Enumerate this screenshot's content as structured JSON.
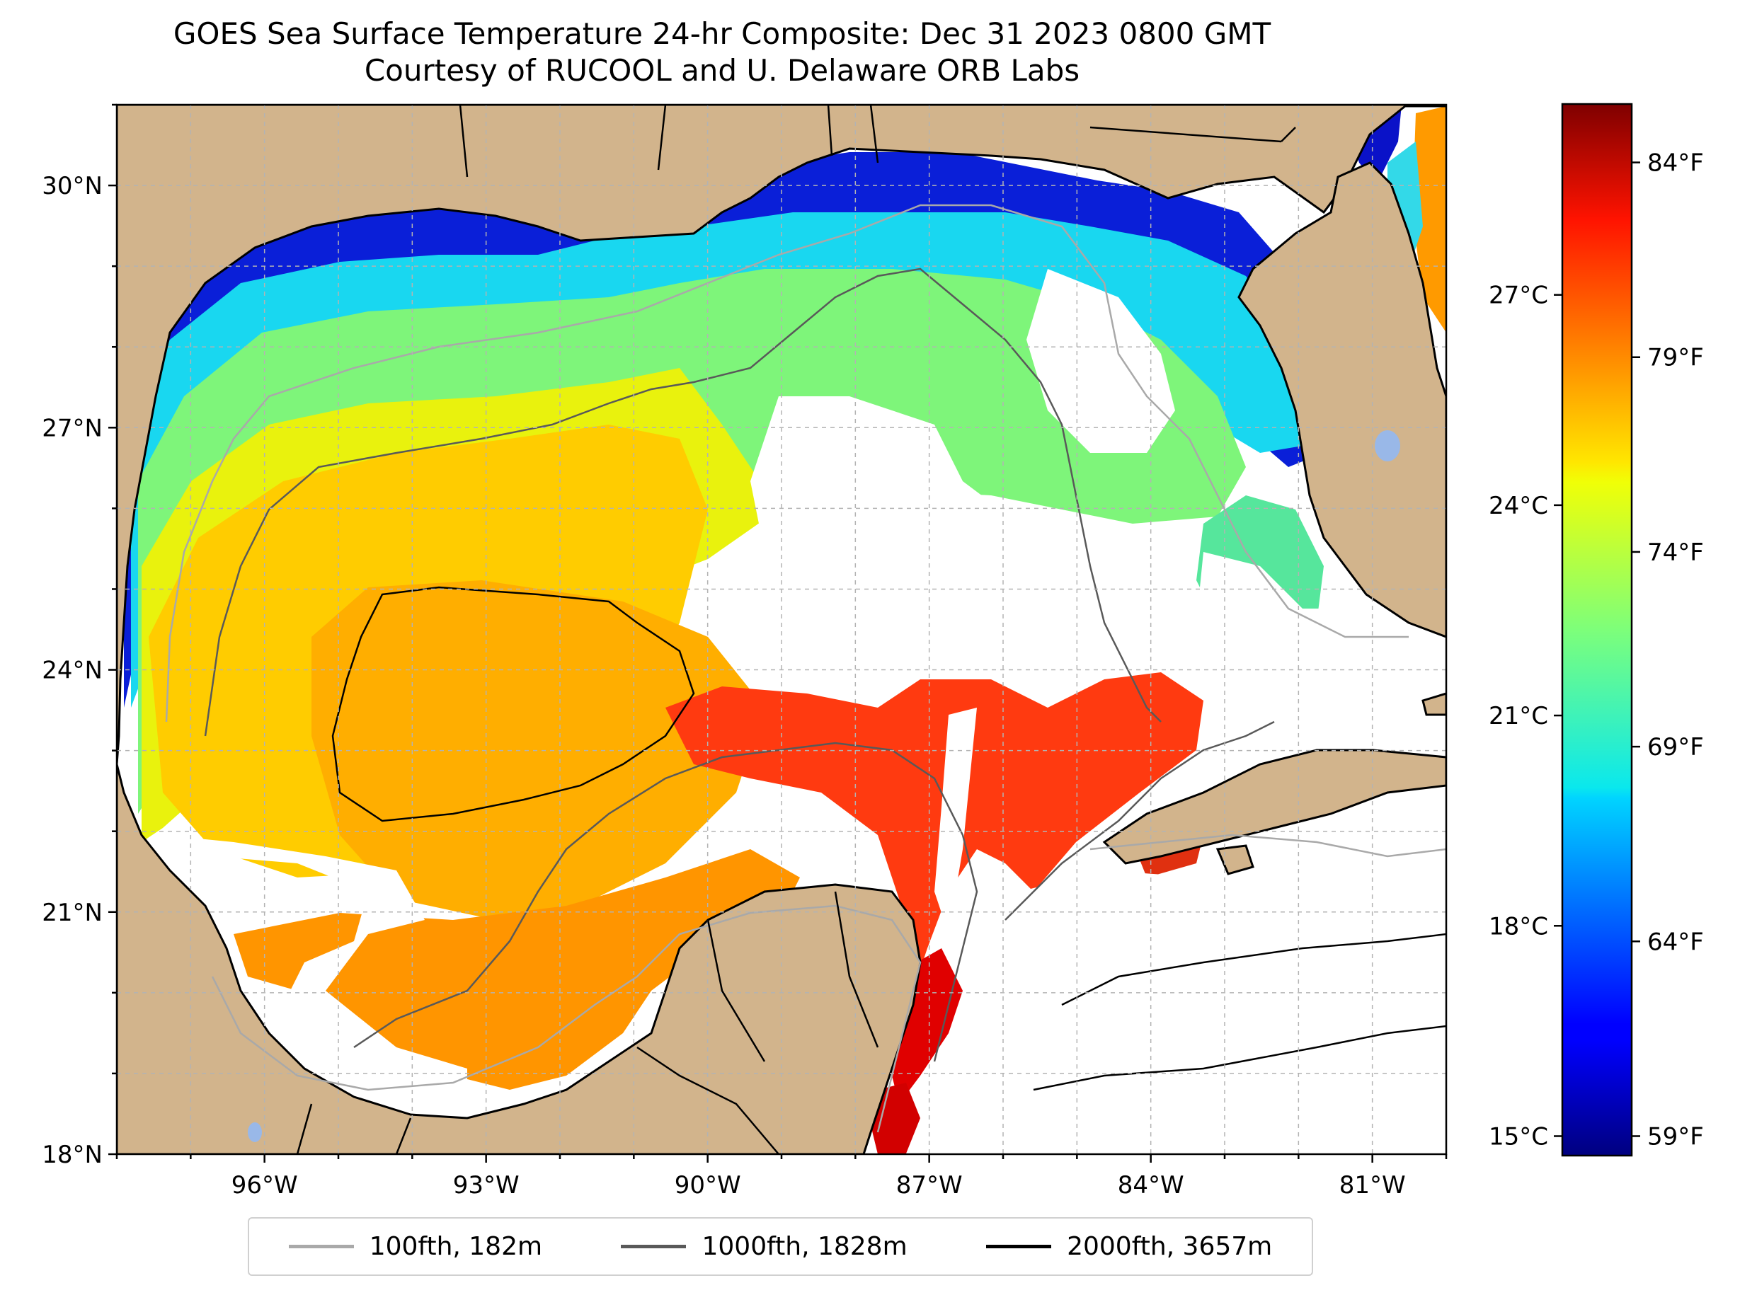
{
  "title": {
    "line1": "GOES Sea Surface Temperature 24-hr Composite: Dec 31 2023 0800 GMT",
    "line2": "Courtesy of RUCOOL and U. Delaware ORB Labs"
  },
  "map": {
    "lon_range": [
      -98,
      -80
    ],
    "lat_range": [
      18,
      31
    ],
    "lon_ticks": [
      "96°W",
      "93°W",
      "90°W",
      "87°W",
      "84°W",
      "81°W"
    ],
    "lon_tick_values": [
      -96,
      -93,
      -90,
      -87,
      -84,
      -81
    ],
    "lat_ticks": [
      "18°N",
      "21°N",
      "24°N",
      "27°N",
      "30°N"
    ],
    "lat_tick_values": [
      18,
      21,
      24,
      27,
      30
    ],
    "grid": true,
    "land_color": "#d2b48c",
    "colormap": "jet"
  },
  "colorbar": {
    "celsius_ticks": [
      "15°C",
      "18°C",
      "21°C",
      "24°C",
      "27°C"
    ],
    "celsius_values": [
      15,
      18,
      21,
      24,
      27
    ],
    "fahrenheit_ticks": [
      "59°F",
      "64°F",
      "69°F",
      "74°F",
      "79°F",
      "84°F"
    ],
    "fahrenheit_values": [
      59,
      64,
      69,
      74,
      79,
      84
    ],
    "range_f": [
      58.5,
      85.5
    ]
  },
  "legend": {
    "items": [
      {
        "label": "100fth, 182m",
        "color": "#a9a9a9"
      },
      {
        "label": "1000fth, 1828m",
        "color": "#595959"
      },
      {
        "label": "2000fth, 3657m",
        "color": "#000000"
      }
    ]
  }
}
